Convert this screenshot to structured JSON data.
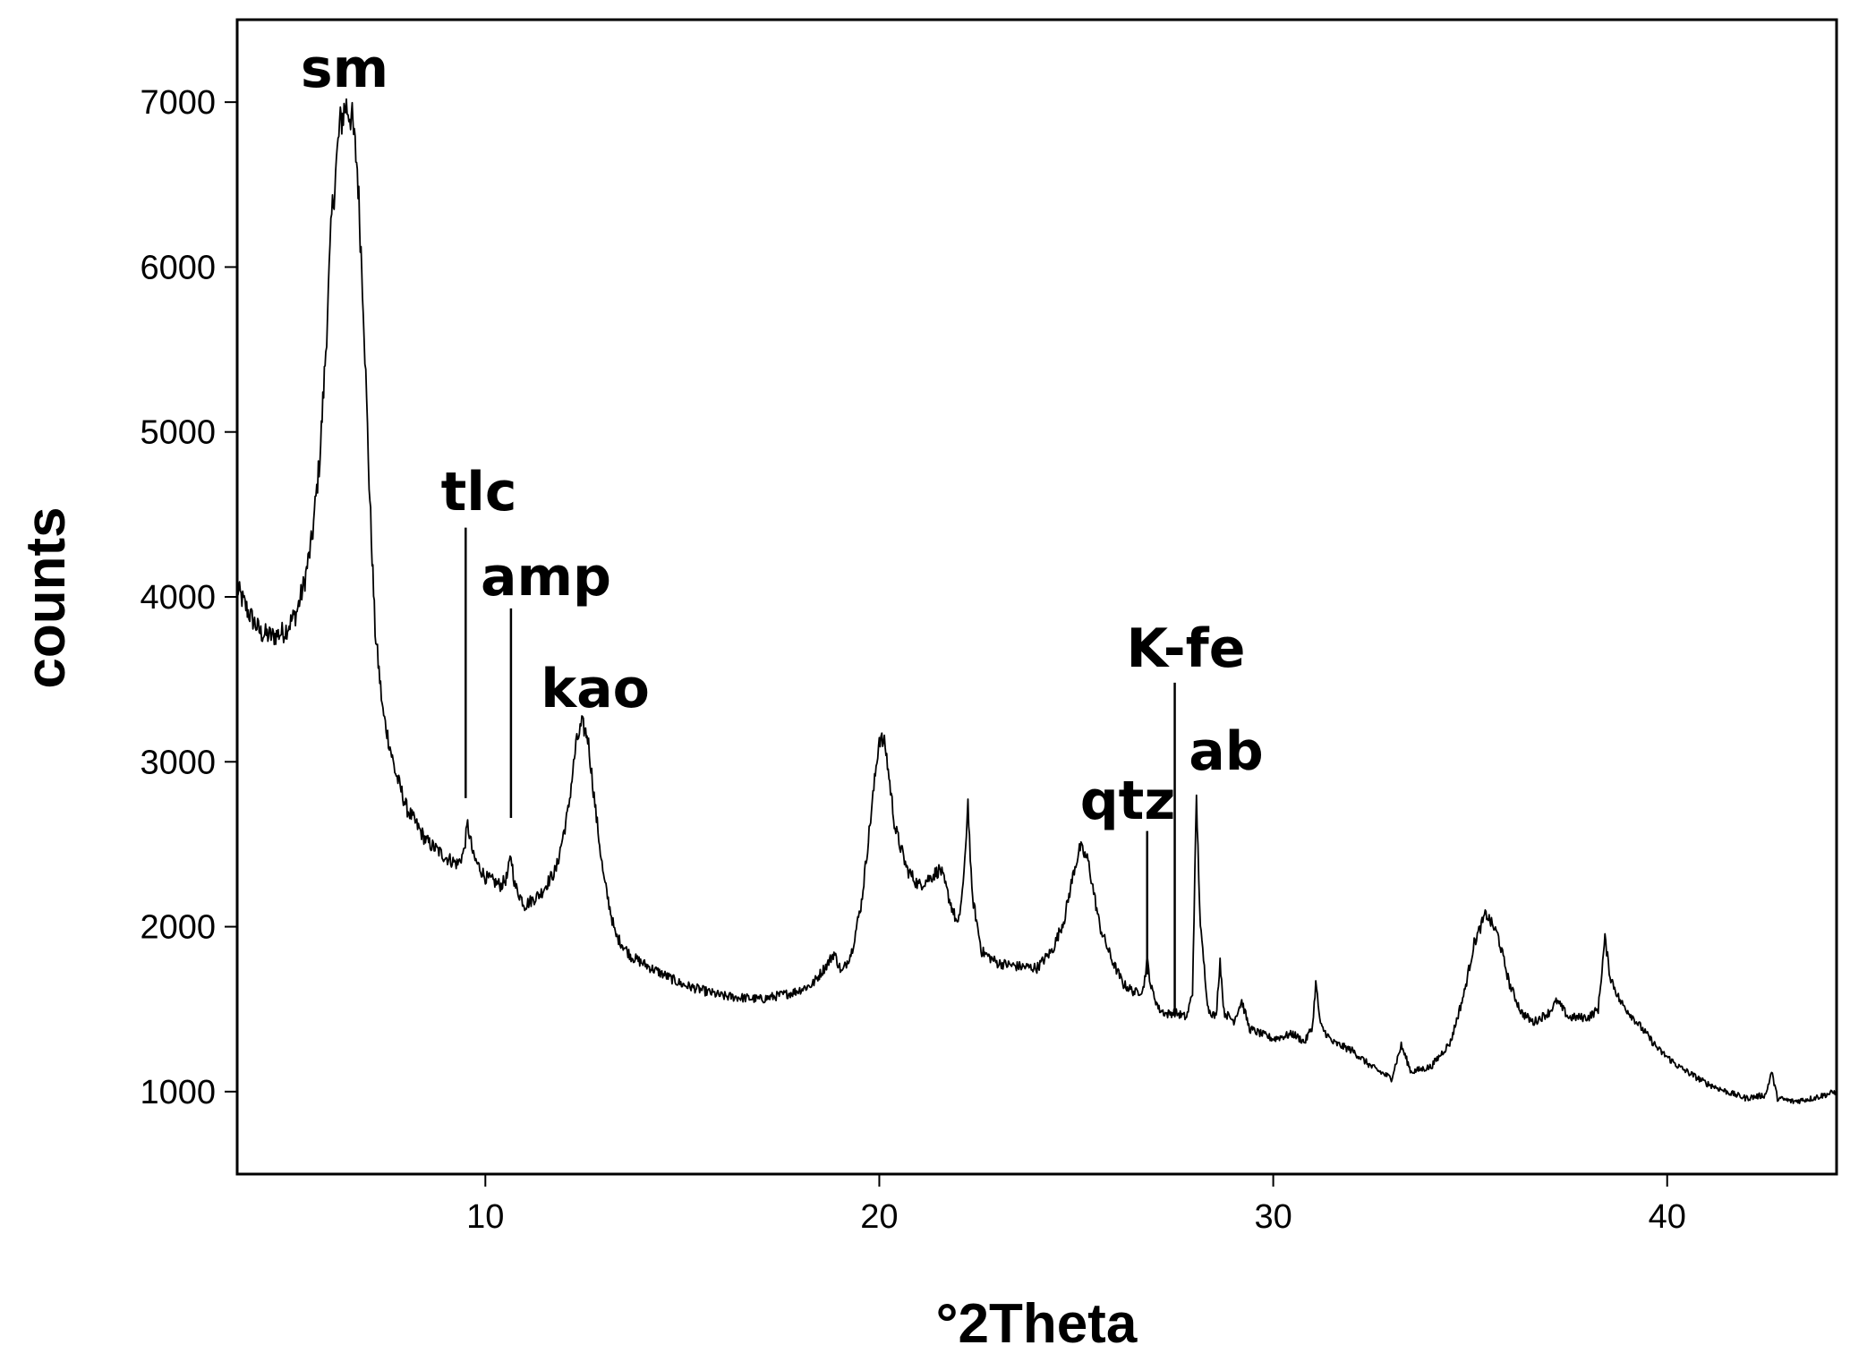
{
  "chart_data": {
    "type": "line",
    "title": "",
    "xlabel": "°2Theta",
    "ylabel": "counts",
    "xlim": [
      3.7,
      44.3
    ],
    "ylim": [
      500,
      7500
    ],
    "xticks": [
      10,
      20,
      30,
      40
    ],
    "yticks": [
      1000,
      2000,
      3000,
      4000,
      5000,
      6000,
      7000
    ],
    "grid": false,
    "legend": "none",
    "line_color": "#000000",
    "series": [
      {
        "values": [
          [
            3.7,
            4050
          ],
          [
            4.0,
            3900
          ],
          [
            4.3,
            3780
          ],
          [
            4.6,
            3760
          ],
          [
            4.9,
            3790
          ],
          [
            5.2,
            3900
          ],
          [
            5.4,
            4080
          ],
          [
            5.6,
            4350
          ],
          [
            5.8,
            4850
          ],
          [
            5.95,
            5500
          ],
          [
            6.1,
            6300
          ],
          [
            6.3,
            6850
          ],
          [
            6.45,
            6980
          ],
          [
            6.6,
            6920
          ],
          [
            6.75,
            6600
          ],
          [
            6.9,
            5800
          ],
          [
            7.05,
            4700
          ],
          [
            7.2,
            3800
          ],
          [
            7.4,
            3300
          ],
          [
            7.7,
            2950
          ],
          [
            8.0,
            2720
          ],
          [
            8.5,
            2520
          ],
          [
            9.0,
            2420
          ],
          [
            9.3,
            2380
          ],
          [
            9.45,
            2450
          ],
          [
            9.55,
            2620
          ],
          [
            9.7,
            2420
          ],
          [
            10.0,
            2300
          ],
          [
            10.4,
            2250
          ],
          [
            10.55,
            2300
          ],
          [
            10.65,
            2430
          ],
          [
            10.75,
            2250
          ],
          [
            11.0,
            2130
          ],
          [
            11.4,
            2200
          ],
          [
            11.8,
            2350
          ],
          [
            12.1,
            2700
          ],
          [
            12.3,
            3100
          ],
          [
            12.45,
            3230
          ],
          [
            12.6,
            3150
          ],
          [
            12.8,
            2700
          ],
          [
            13.0,
            2300
          ],
          [
            13.3,
            1950
          ],
          [
            13.7,
            1820
          ],
          [
            14.2,
            1750
          ],
          [
            15.0,
            1650
          ],
          [
            16.0,
            1580
          ],
          [
            17.0,
            1560
          ],
          [
            17.8,
            1600
          ],
          [
            18.3,
            1650
          ],
          [
            18.7,
            1780
          ],
          [
            18.85,
            1840
          ],
          [
            19.05,
            1720
          ],
          [
            19.3,
            1850
          ],
          [
            19.55,
            2150
          ],
          [
            19.8,
            2700
          ],
          [
            20.0,
            3150
          ],
          [
            20.15,
            3100
          ],
          [
            20.4,
            2600
          ],
          [
            20.7,
            2350
          ],
          [
            21.0,
            2250
          ],
          [
            21.3,
            2300
          ],
          [
            21.55,
            2350
          ],
          [
            21.8,
            2150
          ],
          [
            22.0,
            2000
          ],
          [
            22.15,
            2300
          ],
          [
            22.25,
            2760
          ],
          [
            22.35,
            2200
          ],
          [
            22.6,
            1850
          ],
          [
            23.0,
            1780
          ],
          [
            23.5,
            1760
          ],
          [
            24.0,
            1750
          ],
          [
            24.4,
            1860
          ],
          [
            24.7,
            2050
          ],
          [
            24.95,
            2350
          ],
          [
            25.1,
            2480
          ],
          [
            25.3,
            2400
          ],
          [
            25.6,
            2000
          ],
          [
            25.9,
            1800
          ],
          [
            26.2,
            1650
          ],
          [
            26.5,
            1600
          ],
          [
            26.7,
            1620
          ],
          [
            26.8,
            1800
          ],
          [
            26.9,
            1630
          ],
          [
            27.1,
            1500
          ],
          [
            27.3,
            1470
          ],
          [
            27.5,
            1480
          ],
          [
            27.8,
            1450
          ],
          [
            27.95,
            1600
          ],
          [
            28.05,
            2780
          ],
          [
            28.15,
            2000
          ],
          [
            28.35,
            1500
          ],
          [
            28.55,
            1450
          ],
          [
            28.65,
            1800
          ],
          [
            28.75,
            1480
          ],
          [
            29.0,
            1430
          ],
          [
            29.2,
            1550
          ],
          [
            29.4,
            1380
          ],
          [
            30.0,
            1320
          ],
          [
            30.5,
            1350
          ],
          [
            30.8,
            1300
          ],
          [
            31.0,
            1400
          ],
          [
            31.08,
            1660
          ],
          [
            31.2,
            1400
          ],
          [
            31.5,
            1300
          ],
          [
            32.0,
            1250
          ],
          [
            32.5,
            1150
          ],
          [
            33.0,
            1080
          ],
          [
            33.25,
            1280
          ],
          [
            33.5,
            1120
          ],
          [
            34.0,
            1150
          ],
          [
            34.5,
            1300
          ],
          [
            34.85,
            1600
          ],
          [
            35.1,
            1900
          ],
          [
            35.4,
            2080
          ],
          [
            35.7,
            1950
          ],
          [
            36.0,
            1650
          ],
          [
            36.3,
            1480
          ],
          [
            36.6,
            1420
          ],
          [
            37.0,
            1480
          ],
          [
            37.2,
            1550
          ],
          [
            37.5,
            1450
          ],
          [
            38.0,
            1450
          ],
          [
            38.25,
            1500
          ],
          [
            38.42,
            1930
          ],
          [
            38.55,
            1700
          ],
          [
            38.8,
            1550
          ],
          [
            39.3,
            1400
          ],
          [
            39.8,
            1250
          ],
          [
            40.3,
            1150
          ],
          [
            41.0,
            1050
          ],
          [
            41.5,
            1000
          ],
          [
            42.0,
            960
          ],
          [
            42.5,
            980
          ],
          [
            42.65,
            1120
          ],
          [
            42.8,
            960
          ],
          [
            43.2,
            940
          ],
          [
            43.7,
            960
          ],
          [
            44.3,
            1000
          ]
        ]
      }
    ],
    "annotations": [
      {
        "text": "sm",
        "x": 6.45,
        "marker": false
      },
      {
        "text": "tlc",
        "x": 9.5,
        "marker": true,
        "marker_y_top": 4420,
        "marker_y_bottom": 2780
      },
      {
        "text": "amp",
        "x": 10.65,
        "marker": true,
        "marker_y_top": 3930,
        "marker_y_bottom": 2660
      },
      {
        "text": "kao",
        "x": 12.45,
        "marker": false
      },
      {
        "text": "K-fe",
        "x": 27.5,
        "marker": true,
        "marker_y_top": 3480,
        "marker_y_bottom": 1460
      },
      {
        "text": "qtz",
        "x": 26.8,
        "marker": true,
        "marker_y_top": 2580,
        "marker_y_bottom": 1710
      },
      {
        "text": "ab",
        "x": 28.05,
        "marker": false
      }
    ]
  }
}
